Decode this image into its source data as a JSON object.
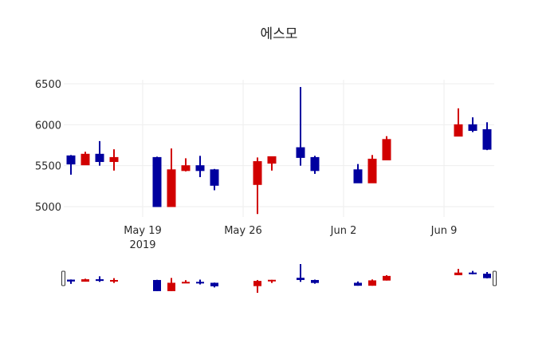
{
  "chart_data": {
    "type": "candlestick",
    "title": "에스모",
    "xlabel": "",
    "ylabel": "",
    "ylim": [
      4850,
      6560
    ],
    "yticks": [
      5000,
      5500,
      6000,
      6500
    ],
    "ytick_labels": [
      "5000",
      "5500",
      "6000",
      "6500"
    ],
    "xticks": [
      {
        "date": "2019-05-19",
        "label": "May 19",
        "sublabel": "2019"
      },
      {
        "date": "2019-05-26",
        "label": "May 26",
        "sublabel": ""
      },
      {
        "date": "2019-06-02",
        "label": "Jun 2",
        "sublabel": ""
      },
      {
        "date": "2019-06-09",
        "label": "Jun 9",
        "sublabel": ""
      }
    ],
    "xrange": [
      "2019-05-13T12:00",
      "2019-06-12T12:00"
    ],
    "increasing_color": "#D10000",
    "decreasing_color": "#00009F",
    "grid": true,
    "rangeslider": true,
    "series": [
      {
        "name": "에스모",
        "ohlc": [
          {
            "date": "2019-05-14",
            "open": 5620,
            "high": 5630,
            "low": 5390,
            "close": 5520
          },
          {
            "date": "2019-05-15",
            "open": 5510,
            "high": 5670,
            "low": 5510,
            "close": 5640
          },
          {
            "date": "2019-05-16",
            "open": 5640,
            "high": 5800,
            "low": 5500,
            "close": 5550
          },
          {
            "date": "2019-05-17",
            "open": 5550,
            "high": 5700,
            "low": 5440,
            "close": 5600
          },
          {
            "date": "2019-05-20",
            "open": 5600,
            "high": 5610,
            "low": 5000,
            "close": 5000
          },
          {
            "date": "2019-05-21",
            "open": 5000,
            "high": 5710,
            "low": 5000,
            "close": 5450
          },
          {
            "date": "2019-05-22",
            "open": 5440,
            "high": 5590,
            "low": 5430,
            "close": 5500
          },
          {
            "date": "2019-05-23",
            "open": 5500,
            "high": 5620,
            "low": 5360,
            "close": 5440
          },
          {
            "date": "2019-05-24",
            "open": 5450,
            "high": 5460,
            "low": 5200,
            "close": 5260
          },
          {
            "date": "2019-05-27",
            "open": 5270,
            "high": 5600,
            "low": 4910,
            "close": 5550
          },
          {
            "date": "2019-05-28",
            "open": 5530,
            "high": 5610,
            "low": 5440,
            "close": 5610
          },
          {
            "date": "2019-05-30",
            "open": 5720,
            "high": 6460,
            "low": 5500,
            "close": 5600
          },
          {
            "date": "2019-05-31",
            "open": 5600,
            "high": 5620,
            "low": 5400,
            "close": 5440
          },
          {
            "date": "2019-06-03",
            "open": 5450,
            "high": 5520,
            "low": 5290,
            "close": 5290
          },
          {
            "date": "2019-06-04",
            "open": 5290,
            "high": 5630,
            "low": 5290,
            "close": 5580
          },
          {
            "date": "2019-06-05",
            "open": 5570,
            "high": 5860,
            "low": 5570,
            "close": 5820
          },
          {
            "date": "2019-06-10",
            "open": 5860,
            "high": 6200,
            "low": 5860,
            "close": 6000
          },
          {
            "date": "2019-06-11",
            "open": 6000,
            "high": 6090,
            "low": 5910,
            "close": 5930
          },
          {
            "date": "2019-06-12",
            "open": 5940,
            "high": 6030,
            "low": 5690,
            "close": 5700
          }
        ]
      }
    ]
  }
}
